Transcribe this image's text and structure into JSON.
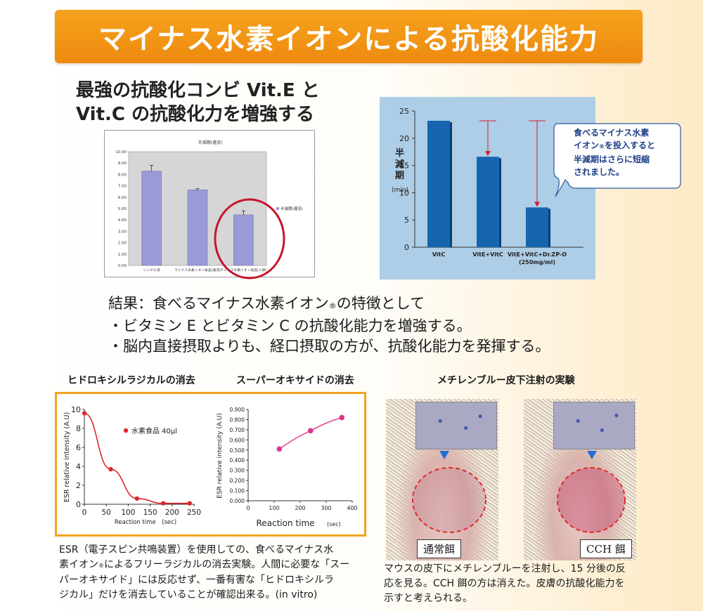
{
  "title": "マイナス水素イオンによる抗酸化能力",
  "subheading": {
    "line1": "最強の抗酸化コンビ Vit.E と",
    "line2": "Vit.C の抗酸化力を増強する"
  },
  "chart_data": [
    {
      "type": "bar",
      "title": "半減期(灌流)",
      "categories": [
        "リンゲル液",
        "マイナス水素イオン食品(灌流)",
        "マイナス水素イオン食品(人尿)"
      ],
      "values": [
        8.3,
        6.65,
        4.45
      ],
      "error": [
        0.5,
        0.1,
        0.35
      ],
      "ylim": [
        0,
        10
      ],
      "yticks": [
        "0.00",
        "1.00",
        "2.00",
        "3.00",
        "4.00",
        "5.00",
        "6.00",
        "7.00",
        "8.00",
        "9.00",
        "10.00"
      ],
      "legend": "半減期(灌流)",
      "legend_position": "right",
      "highlighted_index": 2,
      "grid": false
    },
    {
      "type": "bar",
      "categories": [
        "VitC",
        "VitE+VitC",
        "VitE+VitC+Dr.ZP-O"
      ],
      "category_sublabel": "(250mg/ml)",
      "values": [
        23.2,
        16.6,
        7.3
      ],
      "ylabel": "半減期",
      "yunit": "(min)",
      "ylim": [
        0,
        25
      ],
      "yticks": [
        "0",
        "5",
        "10",
        "15",
        "20",
        "25"
      ],
      "reference_value": 23.2,
      "callout": {
        "line1": "食べるマイナス水素",
        "line2": "イオン",
        "mark": "®",
        "line2b": "を投入すると",
        "line3": "半減期はさらに短縮",
        "line4": "されました。"
      },
      "bar_color": "#1566ae"
    },
    {
      "type": "line",
      "section_label": "ヒドロキシルラジカルの消去",
      "series": [
        {
          "name": "水素食品 40μl",
          "x": [
            0,
            60,
            120,
            180,
            240
          ],
          "y": [
            9.6,
            3.7,
            0.6,
            0.1,
            0.1
          ]
        }
      ],
      "xlabel": "Reaction time　(sec)",
      "ylabel": "ESR relative intensity (A.U)",
      "xlim": [
        0,
        250
      ],
      "ylim": [
        0,
        10
      ],
      "xticks": [
        "0",
        "50",
        "100",
        "150",
        "200",
        "250"
      ],
      "yticks": [
        "0",
        "2",
        "4",
        "6",
        "8",
        "10"
      ],
      "color": "#e0262e"
    },
    {
      "type": "line",
      "section_label": "スーパーオキサイドの消去",
      "series": [
        {
          "x": [
            120,
            240,
            360
          ],
          "y": [
            0.51,
            0.69,
            0.82
          ]
        }
      ],
      "xlabel": "Reaction time",
      "xunit": "(sec)",
      "ylabel": "ESR relative intensity (A.U)",
      "xlim": [
        0,
        400
      ],
      "ylim": [
        0,
        0.9
      ],
      "xticks": [
        "0",
        "100",
        "200",
        "300",
        "400"
      ],
      "yticks": [
        "0.000",
        "0.100",
        "0.200",
        "0.300",
        "0.400",
        "0.500",
        "0.600",
        "0.700",
        "0.800",
        "0.900"
      ],
      "color": "#e0338a"
    }
  ],
  "results": {
    "line1a": "結果：食べるマイナス水素イオン",
    "mark": "®",
    "line1b": "の特徴として",
    "line2": "・ビタミン E とビタミン C の抗酸化能力を増強する。",
    "line3": "・脳内直接摂取よりも、経口摂取の方が、抗酸化能力を発揮する。"
  },
  "experiment": {
    "label": "メチレンブルー皮下注射の実験",
    "photo_left_label": "通常餌",
    "photo_right_label": "CCH 餌",
    "caption": {
      "line1": "マウスの皮下にメチレンブルーを注射し、15 分後の反",
      "line2": "応を見る。CCH 餌の方は消えた。皮膚の抗酸化能力を",
      "line3": "示すと考えられる。"
    }
  },
  "esr_caption": {
    "line1": "ESR（電子スピン共鳴装置）を使用しての、食べるマイナス水",
    "line2a": "素イオン",
    "mark": "®",
    "line2b": "によるフリーラジカルの消去実験。人間に必要な「スー",
    "line3": "パーオキサイド」には反応せず、一番有害な「ヒドロキシルラ",
    "line4": "ジカル」だけを消去していることが確認出来る。(in vitro)"
  },
  "colors": {
    "banner": "#f29418",
    "highlight_circle": "#c4162a",
    "esr_frame": "#f2a31d",
    "right_chart_bg": "#aecde6"
  }
}
